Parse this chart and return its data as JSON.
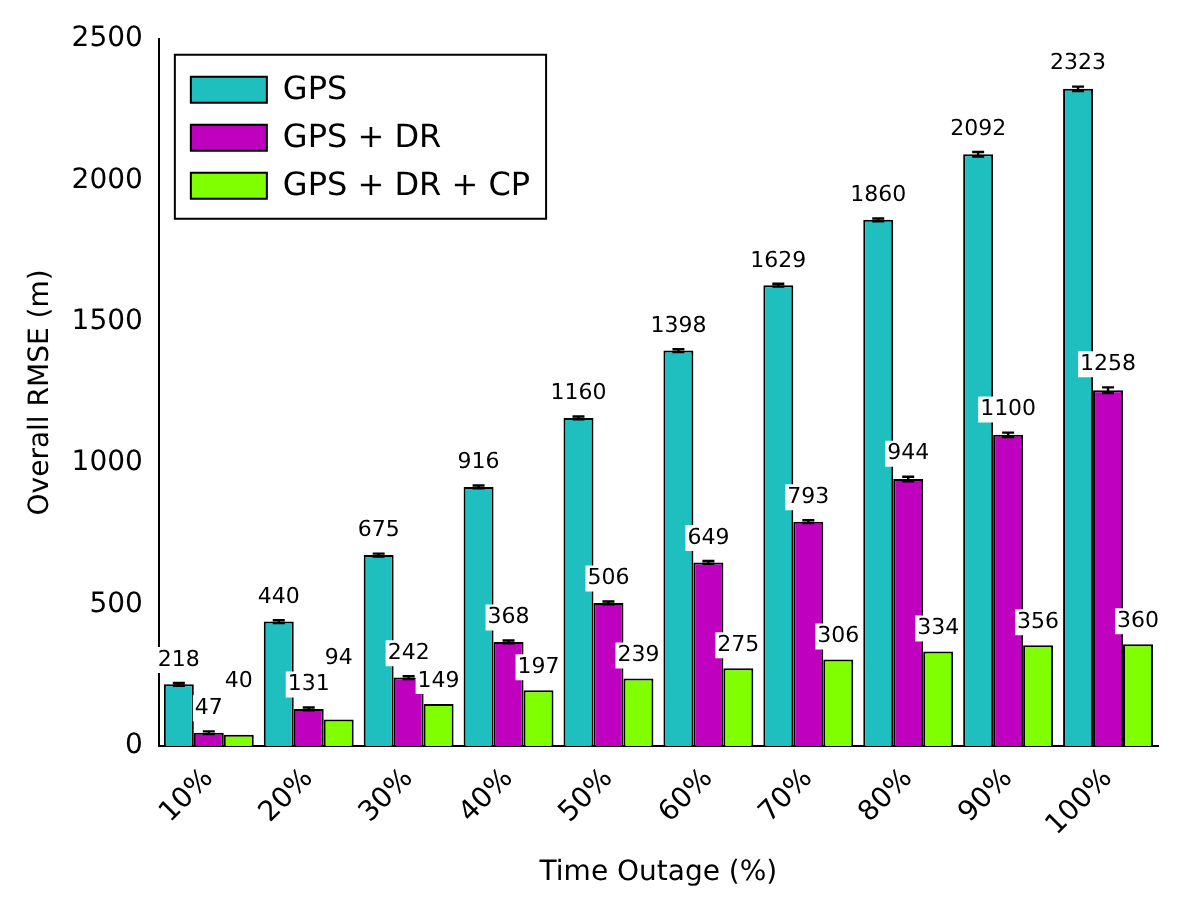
{
  "chart_data": {
    "type": "bar",
    "xlabel": "Time Outage (%)",
    "ylabel": "Overall RMSE (m)",
    "categories": [
      "10%",
      "20%",
      "30%",
      "40%",
      "50%",
      "60%",
      "70%",
      "80%",
      "90%",
      "100%"
    ],
    "series": [
      {
        "name": "GPS",
        "color": "#1fbfbf",
        "values": [
          218,
          440,
          675,
          916,
          1160,
          1398,
          1629,
          1860,
          2092,
          2323
        ],
        "errors": [
          5,
          5,
          5,
          5,
          5,
          5,
          5,
          5,
          8,
          8
        ]
      },
      {
        "name": "GPS + DR",
        "color": "#bf00bf",
        "values": [
          47,
          131,
          242,
          368,
          506,
          649,
          793,
          944,
          1100,
          1258
        ],
        "errors": [
          5,
          5,
          5,
          5,
          5,
          5,
          5,
          8,
          8,
          10
        ]
      },
      {
        "name": "GPS + DR + CP",
        "color": "#7fff00",
        "values": [
          40,
          94,
          149,
          197,
          239,
          275,
          306,
          334,
          356,
          360
        ]
      }
    ],
    "ylim": [
      0,
      2500
    ],
    "yticks": [
      0,
      500,
      1000,
      1500,
      2000,
      2500
    ],
    "grid": false,
    "legend": "top left",
    "data_labels": true
  }
}
